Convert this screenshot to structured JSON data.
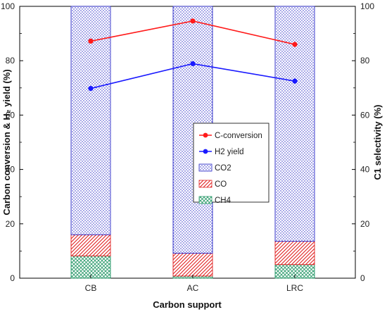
{
  "chart_data": {
    "type": "bar",
    "stacked": true,
    "categories": [
      "CB",
      "AC",
      "LRC"
    ],
    "bar_series": [
      {
        "name": "CH4",
        "values": [
          8.2,
          0.8,
          5.0
        ],
        "color": "#2a9a6a",
        "pattern": "crosshatch-green"
      },
      {
        "name": "CO",
        "values": [
          7.8,
          8.4,
          8.6
        ],
        "color": "#e02020",
        "pattern": "diagonal-red"
      },
      {
        "name": "CO2",
        "values": [
          84.0,
          90.8,
          86.4
        ],
        "color": "#2a2ac8",
        "pattern": "dots-blue"
      }
    ],
    "line_series": [
      {
        "name": "C-conversion",
        "values": [
          87.2,
          94.6,
          86.0
        ],
        "color": "#ff1a1a",
        "axis": "left"
      },
      {
        "name": "H2 yield",
        "values": [
          69.8,
          78.9,
          72.5
        ],
        "color": "#1a1aff",
        "axis": "left"
      }
    ],
    "xlabel": "Carbon support",
    "ylabel_left": "Carbon conversion & H₂ yield (%)",
    "ylabel_right": "C1 selectivity (%)",
    "ylim_left": [
      0,
      100
    ],
    "ylim_right": [
      0,
      100
    ],
    "yticks": [
      "0",
      "20",
      "40",
      "60",
      "80",
      "100"
    ],
    "legend_order": [
      "C-conversion",
      "H2 yield",
      "CO2",
      "CO",
      "CH4"
    ],
    "legend_placement": "center",
    "grid": false
  }
}
